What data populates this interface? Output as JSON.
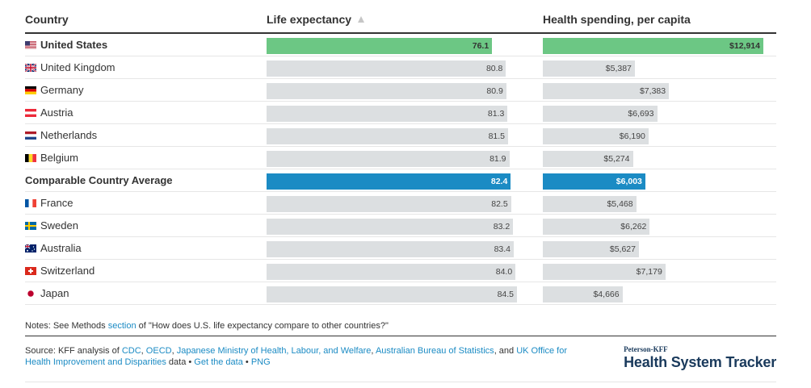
{
  "chart_data": {
    "type": "table",
    "columns": [
      "Country",
      "Life expectancy",
      "Health spending, per capita"
    ],
    "sorted_column": "Life expectancy",
    "sort_direction": "ascending",
    "rows": [
      {
        "country": "United States",
        "life_expectancy": 76.1,
        "life_label": "76.1",
        "spending": 12914,
        "spending_label": "$12,914",
        "highlight": "us",
        "flag": "us"
      },
      {
        "country": "United Kingdom",
        "life_expectancy": 80.8,
        "life_label": "80.8",
        "spending": 5387,
        "spending_label": "$5,387",
        "highlight": "",
        "flag": "uk"
      },
      {
        "country": "Germany",
        "life_expectancy": 80.9,
        "life_label": "80.9",
        "spending": 7383,
        "spending_label": "$7,383",
        "highlight": "",
        "flag": "de"
      },
      {
        "country": "Austria",
        "life_expectancy": 81.3,
        "life_label": "81.3",
        "spending": 6693,
        "spending_label": "$6,693",
        "highlight": "",
        "flag": "at"
      },
      {
        "country": "Netherlands",
        "life_expectancy": 81.5,
        "life_label": "81.5",
        "spending": 6190,
        "spending_label": "$6,190",
        "highlight": "",
        "flag": "nl"
      },
      {
        "country": "Belgium",
        "life_expectancy": 81.9,
        "life_label": "81.9",
        "spending": 5274,
        "spending_label": "$5,274",
        "highlight": "",
        "flag": "be"
      },
      {
        "country": "Comparable Country Average",
        "life_expectancy": 82.4,
        "life_label": "82.4",
        "spending": 6003,
        "spending_label": "$6,003",
        "highlight": "avg",
        "flag": ""
      },
      {
        "country": "France",
        "life_expectancy": 82.5,
        "life_label": "82.5",
        "spending": 5468,
        "spending_label": "$5,468",
        "highlight": "",
        "flag": "fr"
      },
      {
        "country": "Sweden",
        "life_expectancy": 83.2,
        "life_label": "83.2",
        "spending": 6262,
        "spending_label": "$6,262",
        "highlight": "",
        "flag": "se"
      },
      {
        "country": "Australia",
        "life_expectancy": 83.4,
        "life_label": "83.4",
        "spending": 5627,
        "spending_label": "$5,627",
        "highlight": "",
        "flag": "au"
      },
      {
        "country": "Switzerland",
        "life_expectancy": 84.0,
        "life_label": "84.0",
        "spending": 7179,
        "spending_label": "$7,179",
        "highlight": "",
        "flag": "ch"
      },
      {
        "country": "Japan",
        "life_expectancy": 84.5,
        "life_label": "84.5",
        "spending": 4666,
        "spending_label": "$4,666",
        "highlight": "",
        "flag": "jp"
      }
    ],
    "life_scale_max": 84.5,
    "spending_scale_max": 12914
  },
  "colors": {
    "us_bar": "#6cc784",
    "avg_bar": "#1b8bc4",
    "default_bar": "#dcdfe1",
    "link": "#1b8bc4",
    "brand": "#1a3a5c"
  },
  "notes": {
    "prefix": "Notes: See Methods ",
    "link": "section",
    "suffix": " of \"How does U.S. life expectancy compare to other countries?\""
  },
  "source": {
    "prefix": "Source: KFF analysis of ",
    "link_cdc": "CDC",
    "sep1": ", ",
    "link_oecd": "OECD",
    "sep2": ", ",
    "link_japan": "Japanese Ministry of Health, Labour, and Welfare",
    "sep3": ", ",
    "link_abs": "Australian Bureau of Statistics",
    "sep4": ", and ",
    "link_uk": "UK Office for Health Improvement and Disparities",
    "sep5": " data • ",
    "link_data": "Get the data",
    "sep6": " • ",
    "link_png": "PNG"
  },
  "brand": {
    "small": "Peterson-KFF",
    "big": "Health System Tracker"
  }
}
